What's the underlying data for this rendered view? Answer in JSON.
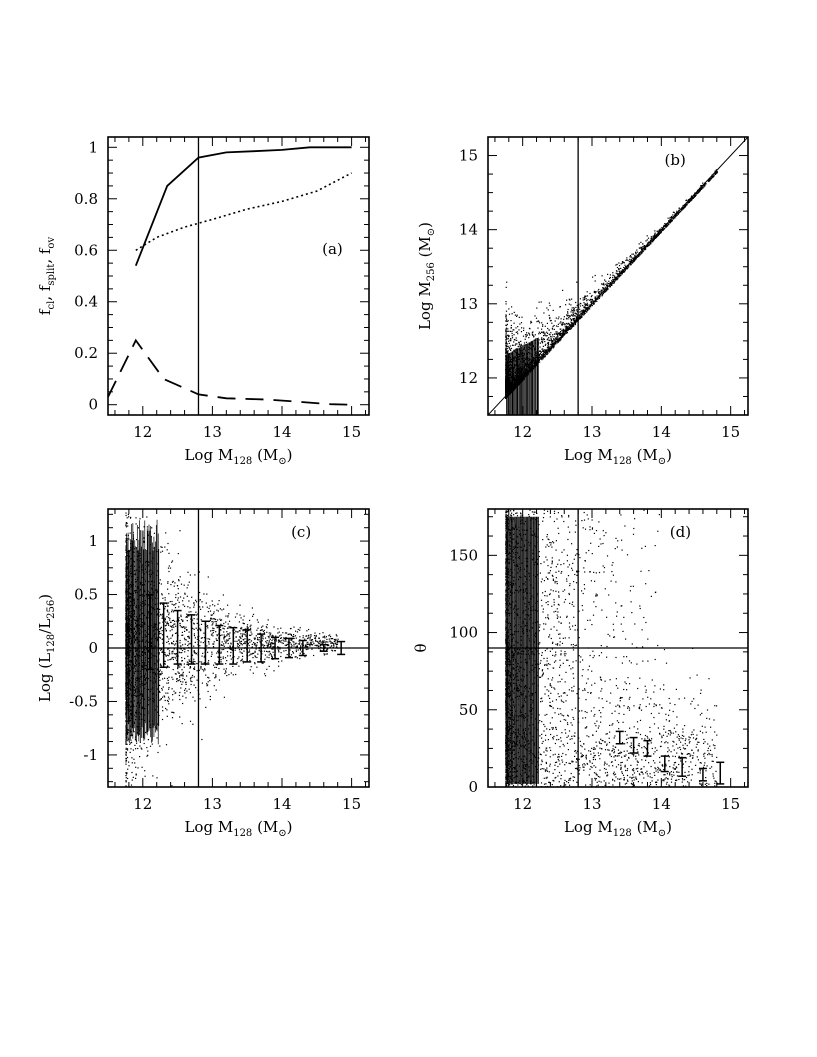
{
  "chart_data": [
    {
      "id": "a",
      "type": "line",
      "panel_label": "(a)",
      "xlabel": {
        "main": "Log M",
        "sub": "128",
        "unit": " (M",
        "unit_sub": "⊙",
        "close": ")"
      },
      "ylabel": {
        "parts": [
          {
            "main": "f",
            "sub": "cl"
          },
          {
            "main": ", f",
            "sub": "split"
          },
          {
            "main": ", f",
            "sub": "ov"
          }
        ]
      },
      "xlim": [
        11.5,
        15.25
      ],
      "ylim": [
        -0.04,
        1.04
      ],
      "xticks": [
        12,
        13,
        14,
        15
      ],
      "yticks": [
        0,
        0.2,
        0.4,
        0.6,
        0.8,
        1
      ],
      "ytick_labels": [
        "0",
        "0.2",
        "0.4",
        "0.6",
        "0.8",
        "1"
      ],
      "vline": 12.8,
      "series": [
        {
          "name": "f_cl",
          "style": "solid",
          "x": [
            11.9,
            12.35,
            12.8,
            13.2,
            13.6,
            14.0,
            14.4,
            15.0
          ],
          "y": [
            0.54,
            0.85,
            0.96,
            0.98,
            0.985,
            0.99,
            1.0,
            1.0
          ]
        },
        {
          "name": "f_split",
          "style": "dotted",
          "x": [
            11.9,
            12.2,
            12.6,
            13.0,
            13.5,
            14.0,
            14.5,
            15.0
          ],
          "y": [
            0.6,
            0.65,
            0.69,
            0.72,
            0.76,
            0.79,
            0.83,
            0.9
          ]
        },
        {
          "name": "f_ov",
          "style": "dashed",
          "x": [
            11.5,
            11.9,
            12.3,
            12.8,
            13.2,
            13.8,
            14.3,
            14.7,
            15.0
          ],
          "y": [
            0.03,
            0.25,
            0.1,
            0.04,
            0.025,
            0.02,
            0.01,
            0.002,
            0.0
          ]
        }
      ]
    },
    {
      "id": "b",
      "type": "scatter",
      "panel_label": "(b)",
      "xlabel": {
        "main": "Log M",
        "sub": "128",
        "unit": " (M",
        "unit_sub": "⊙",
        "close": ")"
      },
      "ylabel": {
        "parts": [
          {
            "main": "Log M",
            "sub": "256"
          },
          {
            "main": " (M",
            "sub": "⊙"
          },
          {
            "main": ")",
            "sub": ""
          }
        ]
      },
      "xlim": [
        11.5,
        15.25
      ],
      "ylim": [
        11.5,
        15.25
      ],
      "xticks": [
        12,
        13,
        14,
        15
      ],
      "yticks": [
        12,
        13,
        14,
        15
      ],
      "ytick_labels": [
        "12",
        "13",
        "14",
        "15"
      ],
      "vline": 12.8,
      "diagonal": true,
      "scatter_model": {
        "relation": "identity",
        "x_range": [
          11.75,
          14.8
        ],
        "scatter_at_12": 0.35,
        "scatter_at_14": 0.05,
        "n_points": 3400
      }
    },
    {
      "id": "c",
      "type": "scatter",
      "panel_label": "(c)",
      "xlabel": {
        "main": "Log M",
        "sub": "128",
        "unit": " (M",
        "unit_sub": "⊙",
        "close": ")"
      },
      "ylabel": {
        "parts": [
          {
            "main": "Log (L",
            "sub": "128"
          },
          {
            "main": "/L",
            "sub": "256"
          },
          {
            "main": ")",
            "sub": ""
          }
        ]
      },
      "xlim": [
        11.5,
        15.25
      ],
      "ylim": [
        -1.3,
        1.3
      ],
      "xticks": [
        12,
        13,
        14,
        15
      ],
      "yticks": [
        -1,
        -0.5,
        0,
        0.5,
        1
      ],
      "ytick_labels": [
        "-1",
        "-0.5",
        "0",
        "0.5",
        "1"
      ],
      "vline": 12.8,
      "hline": 0,
      "scatter_model": {
        "center": 0.05,
        "spread_at_12": 0.55,
        "spread_at_14": 0.08,
        "n_points": 3200
      },
      "error_bars": {
        "x": [
          12.1,
          12.3,
          12.5,
          12.7,
          12.9,
          13.1,
          13.3,
          13.5,
          13.7,
          13.9,
          14.1,
          14.3,
          14.6,
          14.85
        ],
        "y": [
          0.15,
          0.12,
          0.1,
          0.08,
          0.05,
          0.03,
          0.02,
          0.02,
          0.0,
          0.0,
          0.0,
          0.0,
          0.0,
          0.0
        ],
        "err": [
          0.35,
          0.3,
          0.25,
          0.23,
          0.2,
          0.18,
          0.17,
          0.15,
          0.13,
          0.1,
          0.09,
          0.07,
          0.03,
          0.06
        ]
      }
    },
    {
      "id": "d",
      "type": "scatter",
      "panel_label": "(d)",
      "xlabel": {
        "main": "Log M",
        "sub": "128",
        "unit": " (M",
        "unit_sub": "⊙",
        "close": ")"
      },
      "ylabel": {
        "parts": [
          {
            "main": "θ",
            "sub": ""
          }
        ]
      },
      "xlim": [
        11.5,
        15.25
      ],
      "ylim": [
        0,
        180
      ],
      "xticks": [
        12,
        13,
        14,
        15
      ],
      "yticks": [
        0,
        50,
        100,
        150
      ],
      "ytick_labels": [
        "0",
        "50",
        "100",
        "150"
      ],
      "vline": 12.8,
      "hline": 90,
      "scatter_model": {
        "range": [
          0,
          180
        ],
        "n_points": 3200
      },
      "error_bars": {
        "x": [
          13.4,
          13.6,
          13.8,
          14.05,
          14.3,
          14.6,
          14.85
        ],
        "y": [
          32,
          27,
          25,
          15,
          13,
          8,
          9
        ],
        "err": [
          4,
          5,
          5,
          5,
          6,
          4,
          7
        ]
      }
    }
  ]
}
